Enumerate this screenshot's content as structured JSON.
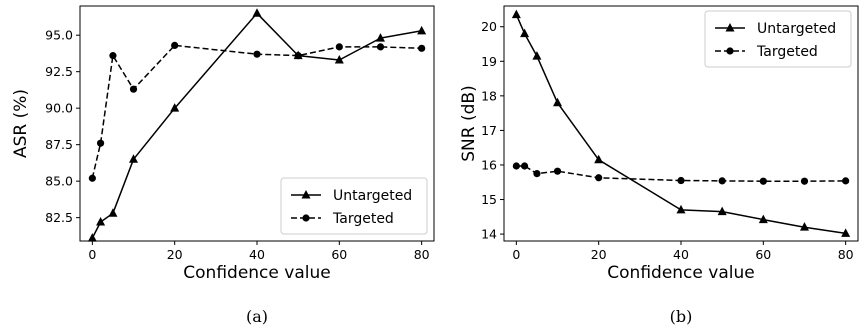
{
  "chart_data": [
    {
      "type": "line",
      "caption": "(a)",
      "xlabel": "Confidence value",
      "ylabel": "ASR (%)",
      "xlim": [
        -3,
        83
      ],
      "ylim": [
        80.9,
        97.0
      ],
      "xticks": [
        0,
        20,
        40,
        60,
        80
      ],
      "yticks": [
        82.5,
        85.0,
        87.5,
        90.0,
        92.5,
        95.0
      ],
      "ytick_labels": [
        "82.5",
        "85.0",
        "87.5",
        "90.0",
        "92.5",
        "95.0"
      ],
      "legend_position": "lower-right",
      "series": [
        {
          "name": "Untargeted",
          "marker": "triangle",
          "style": "solid",
          "x": [
            0,
            2,
            5,
            10,
            20,
            40,
            50,
            60,
            70,
            80
          ],
          "y": [
            81.1,
            82.2,
            82.8,
            86.5,
            90.0,
            96.5,
            93.6,
            93.3,
            94.8,
            95.3
          ]
        },
        {
          "name": "Targeted",
          "marker": "circle",
          "style": "dashed",
          "x": [
            0,
            2,
            5,
            10,
            20,
            40,
            50,
            60,
            70,
            80
          ],
          "y": [
            85.2,
            87.6,
            93.6,
            91.3,
            94.3,
            93.7,
            93.6,
            94.2,
            94.2,
            94.1
          ]
        }
      ]
    },
    {
      "type": "line",
      "caption": "(b)",
      "xlabel": "Confidence value",
      "ylabel": "SNR (dB)",
      "xlim": [
        -3,
        83
      ],
      "ylim": [
        13.8,
        20.6
      ],
      "xticks": [
        0,
        20,
        40,
        60,
        80
      ],
      "yticks": [
        14,
        15,
        16,
        17,
        18,
        19,
        20
      ],
      "ytick_labels": [
        "14",
        "15",
        "16",
        "17",
        "18",
        "19",
        "20"
      ],
      "legend_position": "upper-right",
      "series": [
        {
          "name": "Untargeted",
          "marker": "triangle",
          "style": "solid",
          "x": [
            0,
            2,
            5,
            10,
            20,
            40,
            50,
            60,
            70,
            80
          ],
          "y": [
            20.35,
            19.8,
            19.15,
            17.8,
            16.15,
            14.7,
            14.65,
            14.42,
            14.2,
            14.02
          ]
        },
        {
          "name": "Targeted",
          "marker": "circle",
          "style": "dashed",
          "x": [
            0,
            2,
            5,
            10,
            20,
            40,
            50,
            60,
            70,
            80
          ],
          "y": [
            15.97,
            15.97,
            15.75,
            15.82,
            15.63,
            15.55,
            15.54,
            15.53,
            15.53,
            15.54
          ]
        }
      ]
    }
  ]
}
